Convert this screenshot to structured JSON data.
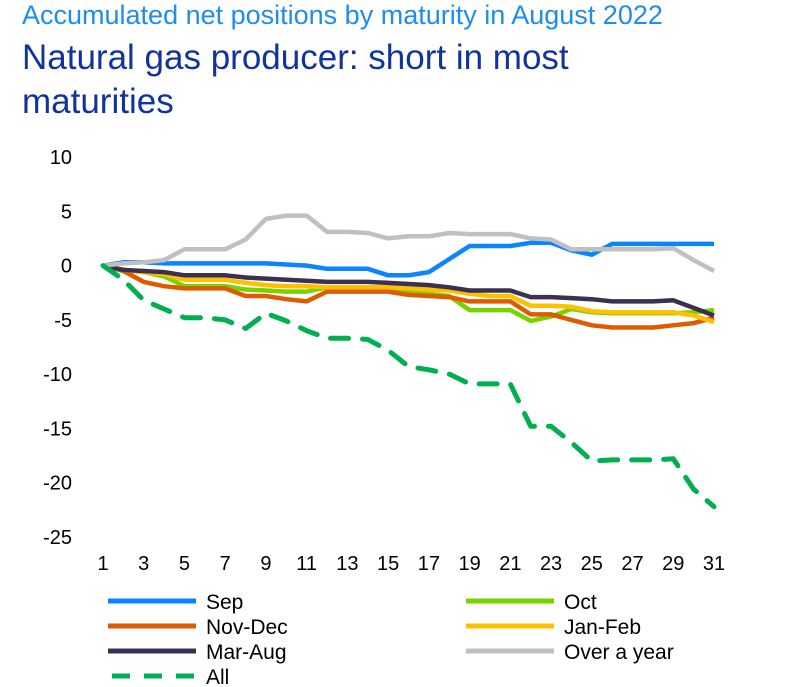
{
  "chart_data": {
    "type": "line",
    "supertitle": "Accumulated net positions by maturity in August 2022",
    "title": "Natural gas producer: short in most maturities",
    "xlabel": "",
    "ylabel": "",
    "x": [
      1,
      2,
      3,
      4,
      5,
      6,
      7,
      8,
      9,
      10,
      11,
      12,
      13,
      14,
      15,
      16,
      17,
      18,
      19,
      20,
      21,
      22,
      23,
      24,
      25,
      26,
      27,
      28,
      29,
      30,
      31
    ],
    "xticks": [
      "1",
      "3",
      "5",
      "7",
      "9",
      "11",
      "13",
      "15",
      "17",
      "19",
      "21",
      "23",
      "25",
      "27",
      "29",
      "31"
    ],
    "yticks": [
      "10",
      "5",
      "0",
      "-5",
      "-10",
      "-15",
      "-20",
      "-25"
    ],
    "ylim": [
      -25,
      10
    ],
    "grid": false,
    "legend_position": "bottom",
    "series": [
      {
        "name": "Sep",
        "color": "#0a84ff",
        "dash": false,
        "values": [
          0,
          0.3,
          0.3,
          0.2,
          0.2,
          0.2,
          0.2,
          0.2,
          0.2,
          0.1,
          0,
          -0.3,
          -0.3,
          -0.3,
          -0.9,
          -0.9,
          -0.6,
          0.6,
          1.8,
          1.8,
          1.8,
          2.1,
          2.1,
          1.4,
          1,
          2,
          2,
          2,
          2,
          2,
          2
        ]
      },
      {
        "name": "Oct",
        "color": "#78d200",
        "dash": false,
        "values": [
          0,
          -0.4,
          -0.6,
          -1,
          -1.9,
          -1.9,
          -1.9,
          -2.2,
          -2.3,
          -2.4,
          -2.4,
          -2,
          -2,
          -2,
          -2,
          -2.4,
          -2.6,
          -2.8,
          -4.1,
          -4.1,
          -4.1,
          -5.1,
          -4.7,
          -4,
          -4.3,
          -4.4,
          -4.4,
          -4.4,
          -4.4,
          -4.3,
          -4.1
        ]
      },
      {
        "name": "Nov-Dec",
        "color": "#e05a00",
        "dash": false,
        "values": [
          0,
          -0.5,
          -1.5,
          -1.9,
          -2.1,
          -2.1,
          -2.1,
          -2.8,
          -2.8,
          -3.1,
          -3.3,
          -2.4,
          -2.4,
          -2.4,
          -2.4,
          -2.7,
          -2.8,
          -2.9,
          -3.3,
          -3.3,
          -3.3,
          -4.5,
          -4.5,
          -5,
          -5.5,
          -5.7,
          -5.7,
          -5.7,
          -5.5,
          -5.3,
          -4.8
        ]
      },
      {
        "name": "Jan-Feb",
        "color": "#ffc000",
        "dash": false,
        "values": [
          0,
          -0.4,
          -0.6,
          -0.8,
          -1.3,
          -1.3,
          -1.3,
          -1.6,
          -1.8,
          -1.9,
          -1.9,
          -2,
          -2,
          -2,
          -2,
          -2.1,
          -2.2,
          -2.3,
          -2.6,
          -2.8,
          -2.8,
          -3.7,
          -3.7,
          -3.8,
          -4.2,
          -4.3,
          -4.3,
          -4.3,
          -4.3,
          -4.6,
          -5.2
        ]
      },
      {
        "name": "Mar-Aug",
        "color": "#3c3050",
        "dash": false,
        "values": [
          0,
          -0.4,
          -0.5,
          -0.6,
          -0.9,
          -0.9,
          -0.9,
          -1.1,
          -1.2,
          -1.3,
          -1.4,
          -1.5,
          -1.5,
          -1.5,
          -1.6,
          -1.7,
          -1.8,
          -2,
          -2.3,
          -2.3,
          -2.3,
          -2.9,
          -2.9,
          -3,
          -3.1,
          -3.3,
          -3.3,
          -3.3,
          -3.2,
          -3.9,
          -4.6
        ]
      },
      {
        "name": "Over a year",
        "color": "#c0c0c0",
        "dash": false,
        "values": [
          0,
          0.2,
          0.3,
          0.5,
          1.5,
          1.5,
          1.5,
          2.4,
          4.3,
          4.6,
          4.6,
          3.1,
          3.1,
          3,
          2.5,
          2.7,
          2.7,
          3,
          2.9,
          2.9,
          2.9,
          2.5,
          2.4,
          1.5,
          1.5,
          1.5,
          1.5,
          1.5,
          1.6,
          0.5,
          -0.5
        ]
      },
      {
        "name": "All",
        "color": "#00b050",
        "dash": true,
        "values": [
          0,
          -1.3,
          -3.2,
          -4,
          -4.8,
          -4.8,
          -5,
          -5.8,
          -4.4,
          -5.1,
          -6,
          -6.7,
          -6.7,
          -6.8,
          -7.8,
          -9.3,
          -9.6,
          -10,
          -10.9,
          -10.9,
          -10.9,
          -14.8,
          -14.8,
          -16.3,
          -18,
          -17.9,
          -17.9,
          -17.9,
          -17.8,
          -20.6,
          -22.2
        ]
      }
    ]
  }
}
